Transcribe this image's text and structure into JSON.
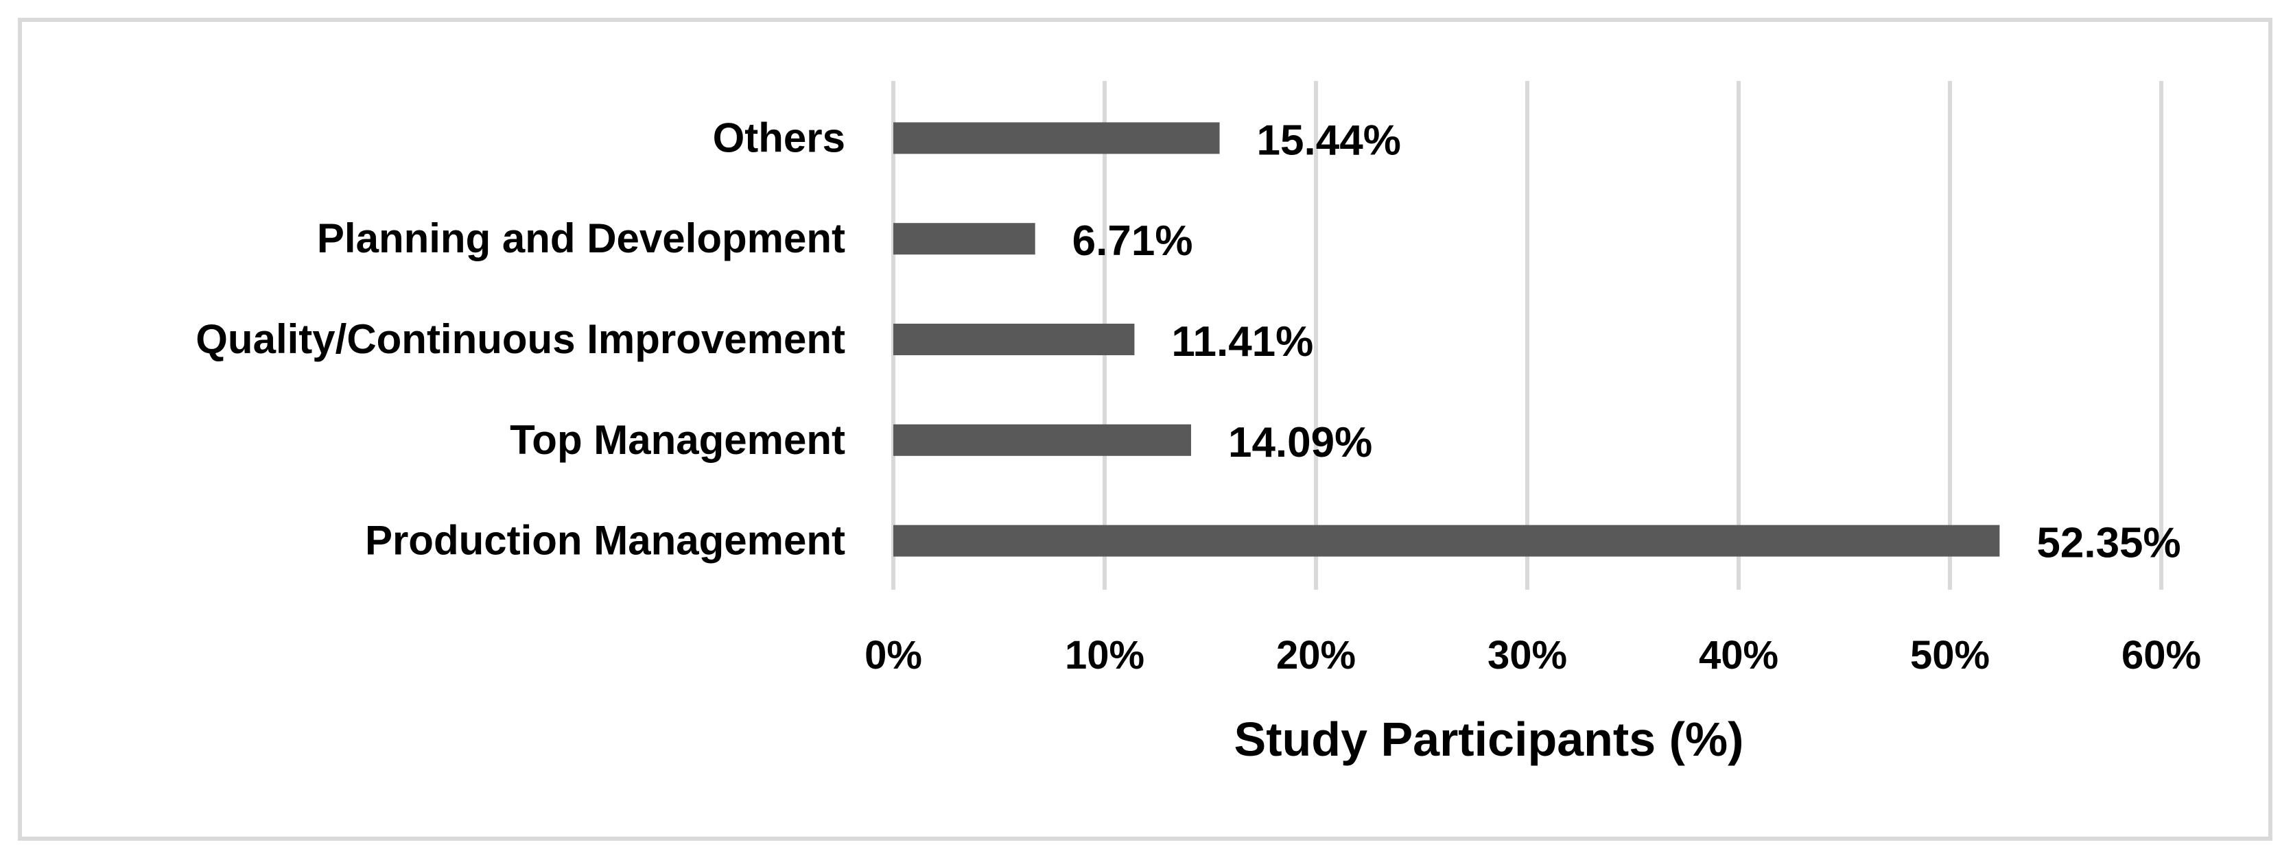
{
  "chart_data": {
    "type": "bar",
    "orientation": "horizontal",
    "categories": [
      "Production Management",
      "Top Management",
      "Quality/Continuous Improvement",
      "Planning and Development",
      "Others"
    ],
    "values": [
      52.35,
      14.09,
      11.41,
      6.71,
      15.44
    ],
    "value_labels": [
      "52.35%",
      "14.09%",
      "11.41%",
      "6.71%",
      "15.44%"
    ],
    "xlabel": "Study Participants (%)",
    "xlim": [
      0,
      60
    ],
    "x_ticks": [
      0,
      10,
      20,
      30,
      40,
      50,
      60
    ],
    "x_tick_labels": [
      "0%",
      "10%",
      "20%",
      "30%",
      "40%",
      "50%",
      "60%"
    ],
    "grid": "vertical",
    "legend": "none",
    "bar_color": "#595959",
    "grid_color": "#d9d9d9"
  }
}
